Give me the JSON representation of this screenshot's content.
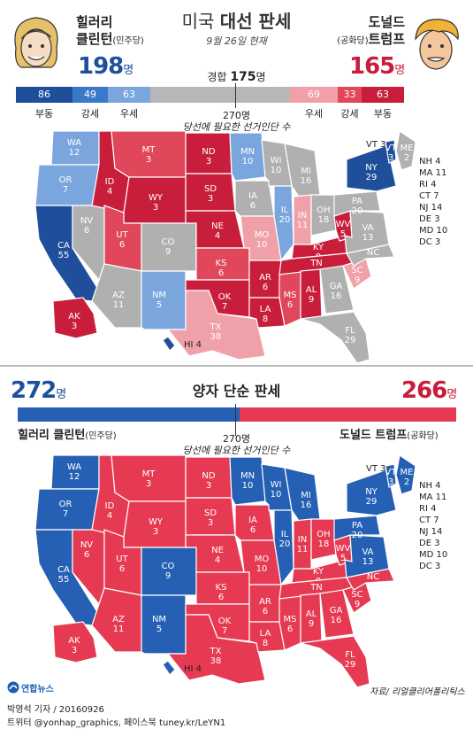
{
  "header": {
    "title_light": "미국 ",
    "title_bold": "대선 판세",
    "date": "9월 26일 현재"
  },
  "clinton": {
    "name_line1": "힐러리",
    "name_line2": "클린턴",
    "party": "(민주당)",
    "total": "198",
    "unit": "명"
  },
  "trump": {
    "name_line1": "도널드",
    "name_line2": "트럼프",
    "party": "(공화당)",
    "total": "165",
    "unit": "명"
  },
  "tossup": {
    "label": "경합",
    "value": "175",
    "unit": "명"
  },
  "bar": {
    "segments": [
      {
        "value": "86",
        "label": "부동",
        "color": "#1f4f9a"
      },
      {
        "value": "49",
        "label": "강세",
        "color": "#3a78c9"
      },
      {
        "value": "63",
        "label": "우세",
        "color": "#7aa6dd"
      },
      {
        "value": "",
        "label": "",
        "color": "#b7b7b7"
      },
      {
        "value": "69",
        "label": "우세",
        "color": "#f0a0a8"
      },
      {
        "value": "33",
        "label": "강세",
        "color": "#e0475a"
      },
      {
        "value": "63",
        "label": "부동",
        "color": "#c81e3c"
      }
    ],
    "threshold_value": "270명",
    "threshold_text": "당선에 필요한 선거인단 수"
  },
  "colors": {
    "solid_d": "#1f4f9a",
    "likely_d": "#3a78c9",
    "lean_d": "#7aa6dd",
    "tossup": "#b0b0b0",
    "lean_r": "#f0a0a8",
    "likely_r": "#e0475a",
    "solid_r": "#c81e3c",
    "d2": "#2560b5",
    "r2": "#e63a52"
  },
  "map1_states": [
    {
      "abbr": "WA",
      "ev": "12",
      "cat": "lean_d"
    },
    {
      "abbr": "OR",
      "ev": "7",
      "cat": "lean_d"
    },
    {
      "abbr": "CA",
      "ev": "55",
      "cat": "solid_d"
    },
    {
      "abbr": "NV",
      "ev": "6",
      "cat": "tossup"
    },
    {
      "abbr": "ID",
      "ev": "4",
      "cat": "solid_r"
    },
    {
      "abbr": "MT",
      "ev": "3",
      "cat": "likely_r"
    },
    {
      "abbr": "WY",
      "ev": "3",
      "cat": "solid_r"
    },
    {
      "abbr": "UT",
      "ev": "6",
      "cat": "likely_r"
    },
    {
      "abbr": "AZ",
      "ev": "11",
      "cat": "tossup"
    },
    {
      "abbr": "CO",
      "ev": "9",
      "cat": "tossup"
    },
    {
      "abbr": "NM",
      "ev": "5",
      "cat": "lean_d"
    },
    {
      "abbr": "ND",
      "ev": "3",
      "cat": "solid_r"
    },
    {
      "abbr": "SD",
      "ev": "3",
      "cat": "solid_r"
    },
    {
      "abbr": "NE",
      "ev": "4",
      "cat": "solid_r"
    },
    {
      "abbr": "KS",
      "ev": "6",
      "cat": "likely_r"
    },
    {
      "abbr": "OK",
      "ev": "7",
      "cat": "solid_r"
    },
    {
      "abbr": "TX",
      "ev": "38",
      "cat": "lean_r"
    },
    {
      "abbr": "MN",
      "ev": "10",
      "cat": "lean_d"
    },
    {
      "abbr": "IA",
      "ev": "6",
      "cat": "tossup"
    },
    {
      "abbr": "MO",
      "ev": "10",
      "cat": "lean_r"
    },
    {
      "abbr": "AR",
      "ev": "6",
      "cat": "solid_r"
    },
    {
      "abbr": "LA",
      "ev": "8",
      "cat": "solid_r"
    },
    {
      "abbr": "WI",
      "ev": "10",
      "cat": "tossup"
    },
    {
      "abbr": "IL",
      "ev": "20",
      "cat": "lean_d"
    },
    {
      "abbr": "MS",
      "ev": "6",
      "cat": "likely_r"
    },
    {
      "abbr": "MI",
      "ev": "16",
      "cat": "tossup"
    },
    {
      "abbr": "IN",
      "ev": "11",
      "cat": "lean_r"
    },
    {
      "abbr": "KY",
      "ev": "8",
      "cat": "solid_r"
    },
    {
      "abbr": "TN",
      "ev": "11",
      "cat": "solid_r"
    },
    {
      "abbr": "AL",
      "ev": "9",
      "cat": "solid_r"
    },
    {
      "abbr": "OH",
      "ev": "18",
      "cat": "tossup"
    },
    {
      "abbr": "WV",
      "ev": "5",
      "cat": "solid_r"
    },
    {
      "abbr": "GA",
      "ev": "16",
      "cat": "tossup"
    },
    {
      "abbr": "FL",
      "ev": "29",
      "cat": "tossup"
    },
    {
      "abbr": "SC",
      "ev": "9",
      "cat": "lean_r"
    },
    {
      "abbr": "NC",
      "ev": "15",
      "cat": "tossup"
    },
    {
      "abbr": "VA",
      "ev": "13",
      "cat": "tossup"
    },
    {
      "abbr": "PA",
      "ev": "20",
      "cat": "tossup"
    },
    {
      "abbr": "NY",
      "ev": "29",
      "cat": "solid_d"
    },
    {
      "abbr": "ME",
      "ev": "2",
      "cat": "tossup"
    },
    {
      "abbr": "VT",
      "ev": "3",
      "cat": "solid_d"
    },
    {
      "abbr": "AK",
      "ev": "3",
      "cat": "solid_r"
    },
    {
      "abbr": "HI",
      "ev": "4",
      "cat": "solid_d"
    }
  ],
  "map_ne_labels": [
    "VT 3",
    "NH 4",
    "MA 11",
    "RI 4",
    "CT 7",
    "NJ 14",
    "DE 3",
    "MD 10",
    "DC 3"
  ],
  "section2": {
    "title": "양자 단순 판세",
    "clinton_total": "272",
    "trump_total": "266",
    "unit": "명",
    "clinton_name": "힐러리 클린턴",
    "clinton_party": "(민주당)",
    "trump_name": "도널드 트럼프",
    "trump_party": "(공화당)",
    "threshold_value": "270명",
    "threshold_text": "당선에 필요한 선거인단 수"
  },
  "map2_states": [
    {
      "abbr": "WA",
      "ev": "12",
      "cat": "d2"
    },
    {
      "abbr": "OR",
      "ev": "7",
      "cat": "d2"
    },
    {
      "abbr": "CA",
      "ev": "55",
      "cat": "d2"
    },
    {
      "abbr": "NV",
      "ev": "6",
      "cat": "r2"
    },
    {
      "abbr": "ID",
      "ev": "4",
      "cat": "r2"
    },
    {
      "abbr": "MT",
      "ev": "3",
      "cat": "r2"
    },
    {
      "abbr": "WY",
      "ev": "3",
      "cat": "r2"
    },
    {
      "abbr": "UT",
      "ev": "6",
      "cat": "r2"
    },
    {
      "abbr": "AZ",
      "ev": "11",
      "cat": "r2"
    },
    {
      "abbr": "CO",
      "ev": "9",
      "cat": "d2"
    },
    {
      "abbr": "NM",
      "ev": "5",
      "cat": "d2"
    },
    {
      "abbr": "ND",
      "ev": "3",
      "cat": "r2"
    },
    {
      "abbr": "SD",
      "ev": "3",
      "cat": "r2"
    },
    {
      "abbr": "NE",
      "ev": "4",
      "cat": "r2"
    },
    {
      "abbr": "KS",
      "ev": "6",
      "cat": "r2"
    },
    {
      "abbr": "OK",
      "ev": "7",
      "cat": "r2"
    },
    {
      "abbr": "TX",
      "ev": "38",
      "cat": "r2"
    },
    {
      "abbr": "MN",
      "ev": "10",
      "cat": "d2"
    },
    {
      "abbr": "IA",
      "ev": "6",
      "cat": "r2"
    },
    {
      "abbr": "MO",
      "ev": "10",
      "cat": "r2"
    },
    {
      "abbr": "AR",
      "ev": "6",
      "cat": "r2"
    },
    {
      "abbr": "LA",
      "ev": "8",
      "cat": "r2"
    },
    {
      "abbr": "WI",
      "ev": "10",
      "cat": "d2"
    },
    {
      "abbr": "IL",
      "ev": "20",
      "cat": "d2"
    },
    {
      "abbr": "MS",
      "ev": "6",
      "cat": "r2"
    },
    {
      "abbr": "MI",
      "ev": "16",
      "cat": "d2"
    },
    {
      "abbr": "IN",
      "ev": "11",
      "cat": "r2"
    },
    {
      "abbr": "KY",
      "ev": "8",
      "cat": "r2"
    },
    {
      "abbr": "TN",
      "ev": "11",
      "cat": "r2"
    },
    {
      "abbr": "AL",
      "ev": "9",
      "cat": "r2"
    },
    {
      "abbr": "OH",
      "ev": "18",
      "cat": "r2"
    },
    {
      "abbr": "WV",
      "ev": "5",
      "cat": "r2"
    },
    {
      "abbr": "GA",
      "ev": "16",
      "cat": "r2"
    },
    {
      "abbr": "FL",
      "ev": "29",
      "cat": "r2"
    },
    {
      "abbr": "SC",
      "ev": "9",
      "cat": "r2"
    },
    {
      "abbr": "NC",
      "ev": "15",
      "cat": "r2"
    },
    {
      "abbr": "VA",
      "ev": "13",
      "cat": "d2"
    },
    {
      "abbr": "PA",
      "ev": "20",
      "cat": "d2"
    },
    {
      "abbr": "NY",
      "ev": "29",
      "cat": "d2"
    },
    {
      "abbr": "ME",
      "ev": "2",
      "cat": "d2"
    },
    {
      "abbr": "VT",
      "ev": "3",
      "cat": "d2"
    },
    {
      "abbr": "AK",
      "ev": "3",
      "cat": "r2"
    },
    {
      "abbr": "HI",
      "ev": "4",
      "cat": "d2"
    }
  ],
  "footer": {
    "logo": "연합뉴스",
    "source": "자료/ 리얼클리어폴리틱스",
    "author": "박영석 기자 / 20160926",
    "social": "트위터 @yonhap_graphics, 페이스북 tuney.kr/LeYN1"
  }
}
